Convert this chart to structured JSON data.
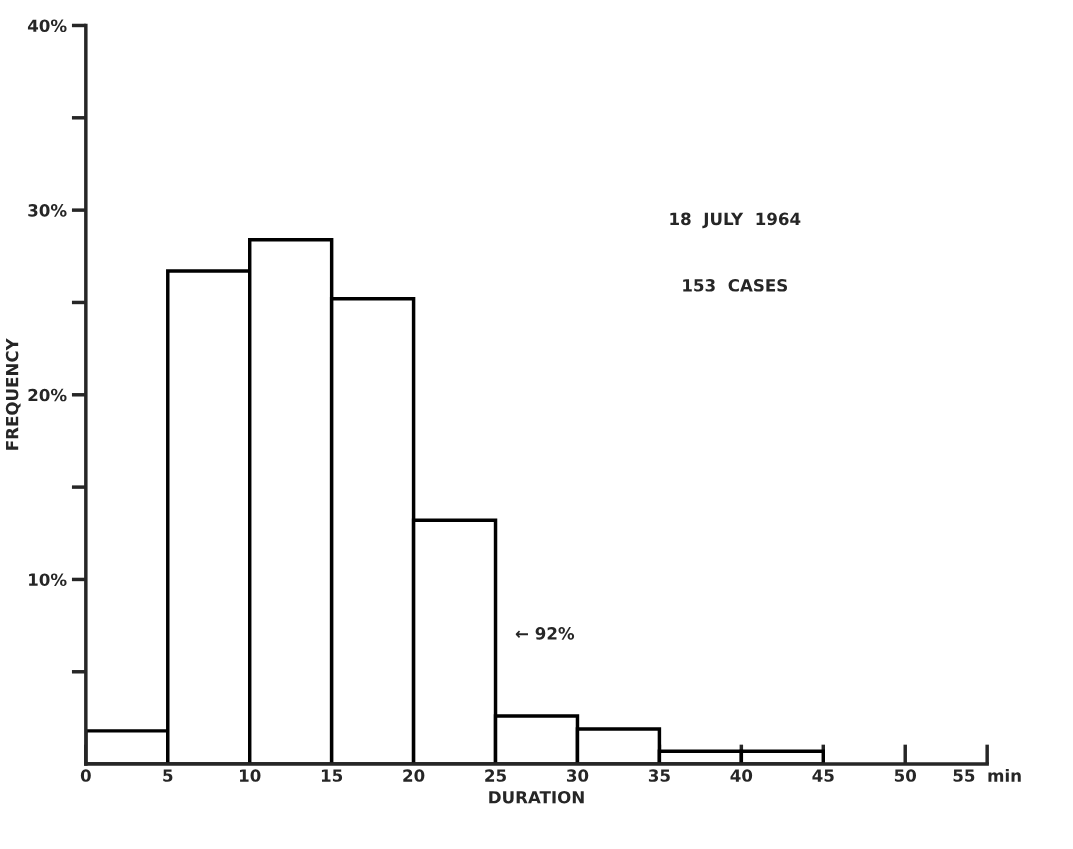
{
  "chart_data": {
    "type": "histogram",
    "xlabel": "DURATION",
    "ylabel": "FREQUENCY",
    "bins": [
      0,
      5,
      10,
      15,
      20,
      25,
      30,
      35,
      40,
      45
    ],
    "values": [
      1.8,
      26.7,
      28.4,
      25.2,
      13.2,
      2.6,
      1.9,
      0.7,
      0.7
    ],
    "color": "#ffffff",
    "xlim": [
      0,
      55
    ],
    "ylim": [
      0,
      40
    ],
    "xticks": [
      0,
      5,
      10,
      15,
      20,
      25,
      30,
      35,
      40,
      45,
      50,
      {
        "value": 55,
        "label": "55  min"
      }
    ],
    "yticks": [
      {
        "value": 5,
        "label": null
      },
      {
        "value": 10,
        "label": "10%"
      },
      {
        "value": 15,
        "label": null
      },
      {
        "value": 20,
        "label": "20%"
      },
      {
        "value": 25,
        "label": null
      },
      {
        "value": 30,
        "label": "30%"
      },
      {
        "value": 35,
        "label": null
      },
      {
        "value": 40,
        "label": "40%"
      }
    ],
    "annotations": [
      "18  JULY  1964",
      "153  CASES",
      {
        "text": "← 92%",
        "x": 25,
        "y": 7
      }
    ],
    "grid": false,
    "legend": false
  }
}
